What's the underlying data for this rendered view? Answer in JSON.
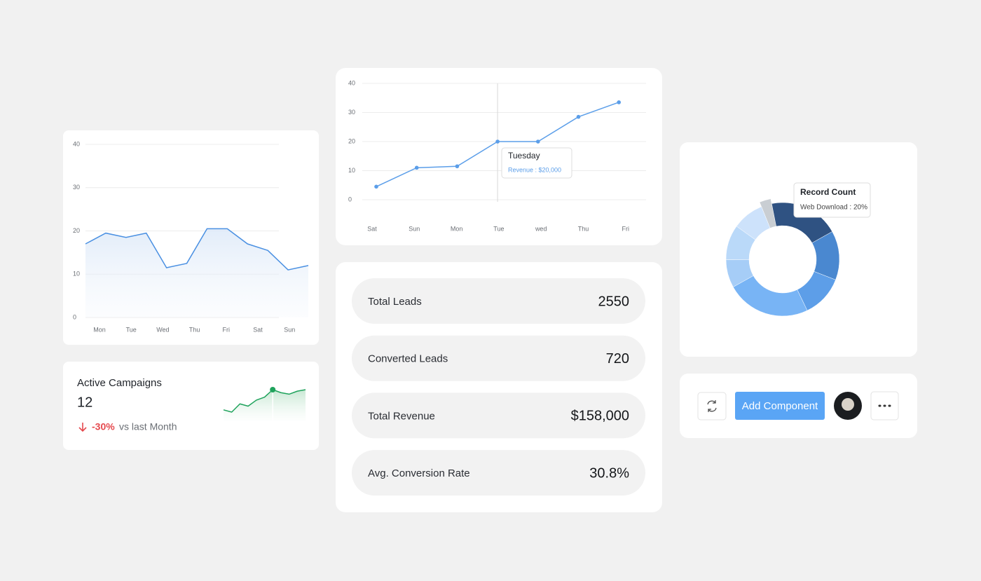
{
  "chart_data": [
    {
      "type": "area",
      "yticks": [
        0,
        10,
        20,
        30,
        40
      ],
      "ylim": [
        0,
        40
      ],
      "x_labels": [
        "Mon",
        "Tue",
        "Wed",
        "Thu",
        "Fri",
        "Sat",
        "Sun"
      ],
      "values": [
        17,
        19.5,
        18.5,
        19.5,
        11.5,
        12.5,
        20.5,
        20.5,
        17,
        15.5,
        11,
        12
      ],
      "color": "#4a90e2",
      "grid": true
    },
    {
      "type": "line",
      "yticks": [
        0,
        10,
        20,
        30,
        40
      ],
      "ylim": [
        0,
        40
      ],
      "categories": [
        "Sat",
        "Sun",
        "Mon",
        "Tue",
        "wed",
        "Thu",
        "Fri"
      ],
      "values": [
        4.5,
        11,
        11.5,
        20,
        20,
        28.5,
        33.5
      ],
      "color": "#5b9ee9",
      "grid": true,
      "tooltip": {
        "index": 3,
        "title": "Tuesday",
        "text": "Revenue : $20,000"
      }
    },
    {
      "type": "donut",
      "values": [
        3,
        20,
        14,
        12,
        24,
        8,
        10,
        9
      ],
      "colors": [
        "#c9ced3",
        "#2f5282",
        "#4a88d0",
        "#5d9ee8",
        "#78b4f5",
        "#a6cdf7",
        "#bad9f9",
        "#cde2fb"
      ],
      "tooltip": {
        "index": 1,
        "title": "Record Count",
        "text": "Web Download : 20%"
      }
    },
    {
      "type": "sparkline",
      "values": [
        17,
        14,
        25,
        22,
        30,
        34,
        44,
        40,
        38,
        42,
        44
      ],
      "highlight": 6,
      "color": "#1fa35c"
    }
  ],
  "campaign": {
    "title": "Active Campaigns",
    "value": "12",
    "change": "-30%",
    "period": "vs last Month"
  },
  "stats": [
    {
      "label": "Total Leads",
      "value": "2550"
    },
    {
      "label": "Converted Leads",
      "value": "720"
    },
    {
      "label": "Total Revenue",
      "value": "$158,000"
    },
    {
      "label": "Avg. Conversion Rate",
      "value": "30.8%"
    }
  ],
  "toolbar": {
    "button": "Add Component"
  }
}
